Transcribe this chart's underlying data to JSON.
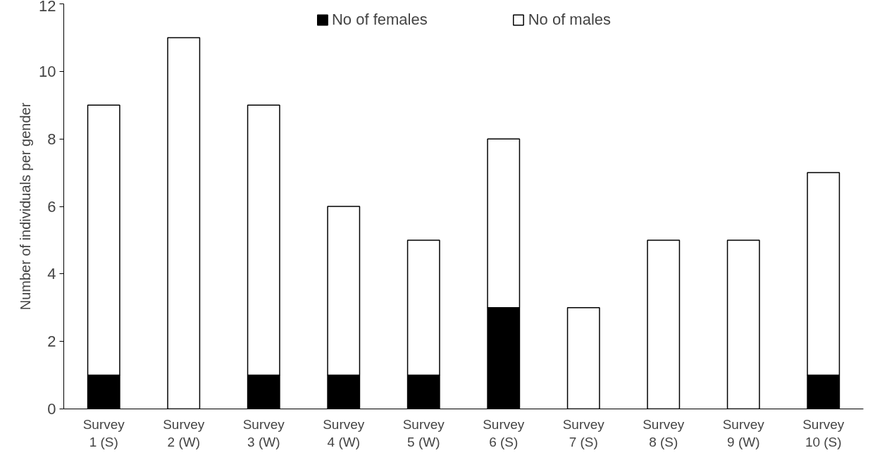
{
  "chart_data": {
    "type": "bar",
    "stacked": true,
    "ylabel": "Number of individuals per gender",
    "categories": [
      "Survey\n1 (S)",
      "Survey\n2 (W)",
      "Survey\n3 (W)",
      "Survey\n4 (W)",
      "Survey\n5 (W)",
      "Survey\n6 (S)",
      "Survey\n7 (S)",
      "Survey\n8 (S)",
      "Survey\n9 (W)",
      "Survey\n10 (S)"
    ],
    "series": [
      {
        "name": "No of females",
        "color": "#000000",
        "values": [
          1,
          0,
          1,
          1,
          1,
          3,
          0,
          0,
          0,
          1
        ]
      },
      {
        "name": "No of males",
        "color": "#ffffff",
        "values": [
          8,
          11,
          8,
          5,
          4,
          5,
          3,
          5,
          5,
          6
        ]
      }
    ],
    "ylim": [
      0,
      12
    ],
    "yticks": [
      0,
      2,
      4,
      6,
      8,
      10,
      12
    ],
    "grid": false,
    "legend": "top"
  }
}
